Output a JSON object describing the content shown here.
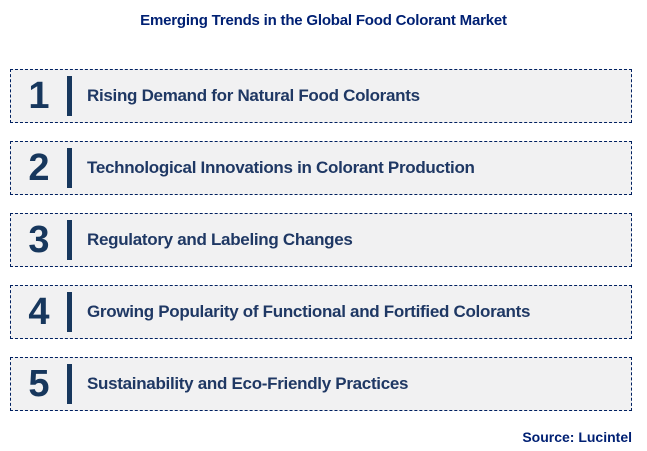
{
  "title": "Emerging Trends in the Global Food Colorant Market",
  "source": "Source: Lucintel",
  "colors": {
    "title_text": "#002073",
    "row_text": "#1F3864",
    "number_and_bar": "#17375D",
    "row_background": "#F1F1F2",
    "row_border": "#002060",
    "page_background": "#FFFFFF"
  },
  "trends": [
    {
      "number": "1",
      "label": "Rising Demand for Natural Food Colorants"
    },
    {
      "number": "2",
      "label": "Technological Innovations in Colorant Production"
    },
    {
      "number": "3",
      "label": "Regulatory and Labeling Changes"
    },
    {
      "number": "4",
      "label": "Growing Popularity of Functional and Fortified Colorants"
    },
    {
      "number": "5",
      "label": "Sustainability and Eco-Friendly Practices"
    }
  ]
}
